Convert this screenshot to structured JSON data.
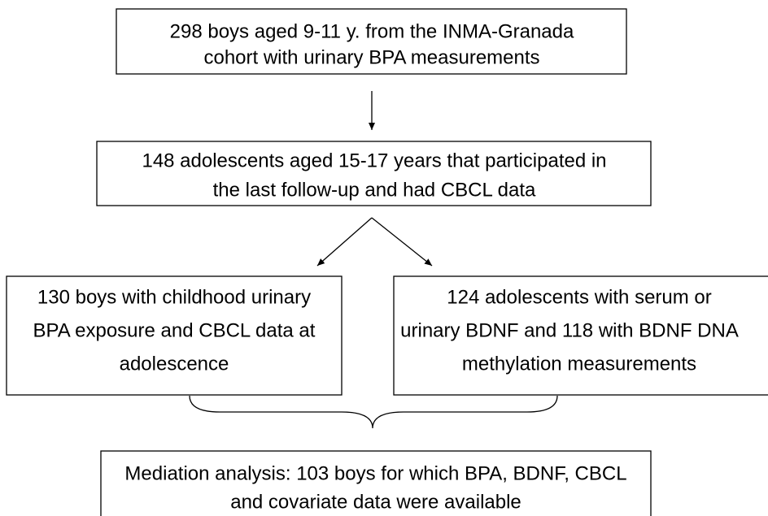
{
  "nodes": [
    {
      "lines": [
        "298 boys aged 9-11 y. from the INMA-Granada",
        "cohort with urinary BPA measurements"
      ]
    },
    {
      "lines": [
        "148 adolescents aged 15-17 years that participated in",
        "the last follow-up and had CBCL data"
      ]
    },
    {
      "lines": [
        "130 boys with childhood urinary",
        "BPA exposure and CBCL data at",
        "adolescence"
      ]
    },
    {
      "lines": [
        "124 adolescents with serum or",
        "urinary BDNF and 118 with BDNF DNA",
        "methylation measurements"
      ]
    },
    {
      "lines": [
        "Mediation analysis: 103 boys for which BPA, BDNF, CBCL",
        "and covariate data were available"
      ]
    }
  ]
}
